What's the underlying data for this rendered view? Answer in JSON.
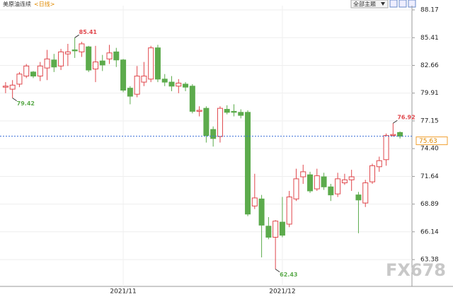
{
  "chart_data": {
    "type": "candlestick",
    "title": "美原油连续",
    "period": "<日线>",
    "categories": [
      null,
      null,
      null,
      null,
      null,
      null,
      null,
      null,
      null,
      null,
      null,
      null,
      null,
      null,
      null,
      null,
      null,
      "2021/11",
      null,
      null,
      null,
      null,
      null,
      null,
      null,
      null,
      null,
      null,
      null,
      null,
      null,
      null,
      null,
      null,
      null,
      null,
      null,
      null,
      null,
      null,
      "2021/12",
      null,
      null,
      null,
      null,
      null,
      null,
      null,
      null,
      null,
      null,
      null,
      null,
      null,
      null,
      null,
      null,
      null
    ],
    "open": [
      80.5,
      80.3,
      80.8,
      81.6,
      82.0,
      81.6,
      82.4,
      83.2,
      82.6,
      83.8,
      84.2,
      84.0,
      84.5,
      82.3,
      83.1,
      83.3,
      84.0,
      83.2,
      80.4,
      79.8,
      81.0,
      81.3,
      84.4,
      81.3,
      81.0,
      80.6,
      80.8,
      80.6,
      78.1,
      78.4,
      76.3,
      75.6,
      78.3,
      78.1,
      78.0,
      78.0,
      68.7,
      69.4,
      66.7,
      65.6,
      67.1,
      66.9,
      69.4,
      71.6,
      71.8,
      70.4,
      71.6,
      70.6,
      69.9,
      71.0,
      71.3,
      69.8,
      69.0,
      71.1,
      72.6,
      73.3,
      75.7,
      76.0
    ],
    "high": [
      81.0,
      81.2,
      82.0,
      82.8,
      82.1,
      83.0,
      84.2,
      83.8,
      84.3,
      84.8,
      85.41,
      85.0,
      84.6,
      84.6,
      83.7,
      84.7,
      84.4,
      83.3,
      80.6,
      82.6,
      83.0,
      84.6,
      84.7,
      81.8,
      81.6,
      81.3,
      81.0,
      80.8,
      78.6,
      78.6,
      76.6,
      78.6,
      78.7,
      78.8,
      78.3,
      78.2,
      71.9,
      69.8,
      67.6,
      67.3,
      69.6,
      70.2,
      72.4,
      72.8,
      72.1,
      72.4,
      72.0,
      70.9,
      72.0,
      71.9,
      72.3,
      70.1,
      71.3,
      72.9,
      73.6,
      75.9,
      76.92,
      76.1
    ],
    "low": [
      79.9,
      79.42,
      80.5,
      81.4,
      81.4,
      81.1,
      81.2,
      82.0,
      82.2,
      82.6,
      83.4,
      83.5,
      82.0,
      81.0,
      82.1,
      82.8,
      82.5,
      80.0,
      78.8,
      79.5,
      80.6,
      81.0,
      81.0,
      80.6,
      80.1,
      79.9,
      80.1,
      77.9,
      77.6,
      75.0,
      74.6,
      75.0,
      77.8,
      77.6,
      77.4,
      67.7,
      68.4,
      63.6,
      65.4,
      62.43,
      65.6,
      66.6,
      69.2,
      70.9,
      70.0,
      70.2,
      70.3,
      69.2,
      69.6,
      70.8,
      70.2,
      66.0,
      68.6,
      70.9,
      72.1,
      72.7,
      75.6,
      75.4
    ],
    "close": [
      80.6,
      80.7,
      81.8,
      82.6,
      81.6,
      82.6,
      83.3,
      82.5,
      84.0,
      84.0,
      84.1,
      84.8,
      82.2,
      83.0,
      82.7,
      83.9,
      83.2,
      80.2,
      79.6,
      81.6,
      81.6,
      84.4,
      81.3,
      81.0,
      80.6,
      80.9,
      80.5,
      78.1,
      78.2,
      75.7,
      75.4,
      78.4,
      78.0,
      78.0,
      77.7,
      67.9,
      69.5,
      66.8,
      65.6,
      67.2,
      65.8,
      69.6,
      71.4,
      72.1,
      70.2,
      71.7,
      70.6,
      69.8,
      71.4,
      71.3,
      71.6,
      69.3,
      71.0,
      72.7,
      73.2,
      75.7,
      75.8,
      75.63
    ],
    "up_color": "#e0474c",
    "down_color": "#5cab4c",
    "ylim": [
      60.72,
      88.59
    ],
    "yticks": [
      88.17,
      85.41,
      82.66,
      79.91,
      77.15,
      {
        "value": 74.4,
        "label": "74.40"
      },
      71.64,
      68.89,
      66.14,
      63.38
    ],
    "grid": true
  },
  "toolbar": {
    "theme_button": "全部主题"
  },
  "watermark": "FX678"
}
